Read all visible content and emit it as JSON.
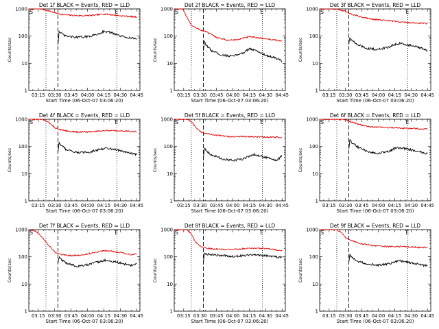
{
  "figure": {
    "background": "#ffffff",
    "event_color": "#000000",
    "lld_color": "#e00000"
  },
  "chart_data": [
    {
      "type": "line",
      "title": "Det 1f BLACK = Events, RED = LLD",
      "xlabel": "Start Time (06-Oct-07 03:06:20)",
      "ylabel": "Counts/sec",
      "y_scale": "log",
      "ylim": [
        1,
        1000
      ],
      "yticks": [
        "1",
        "10",
        "100",
        "1000"
      ],
      "xticks": [
        "03:15",
        "03:30",
        "03:45",
        "04:00",
        "04:15",
        "04:30",
        "04:45"
      ],
      "xlim": [
        "03:06:20",
        "04:48:00"
      ],
      "markers": {
        "S": "03:09:00",
        "E": "04:27:00"
      },
      "vlines_dotted": [
        "03:22:00",
        "04:27:00"
      ],
      "vline_dashed": "03:33:00",
      "series": [
        {
          "name": "LLD",
          "color": "#e00000",
          "x": [
            "03:06:20",
            "03:10:00",
            "03:14:00",
            "03:18:00",
            "03:22:00",
            "03:26:00",
            "03:30:00",
            "03:35:00",
            "03:45:00",
            "03:55:00",
            "04:05:00",
            "04:15:00",
            "04:20:00",
            "04:30:00",
            "04:40:00",
            "04:45:00"
          ],
          "y": [
            1000,
            1000,
            1000,
            1000,
            900,
            820,
            720,
            640,
            580,
            560,
            580,
            650,
            620,
            560,
            520,
            500
          ]
        },
        {
          "name": "Events",
          "color": "#000000",
          "x": [
            "03:33:00",
            "03:34:00",
            "03:35:00",
            "03:40:00",
            "03:50:00",
            "04:00:00",
            "04:10:00",
            "04:15:00",
            "04:20:00",
            "04:30:00",
            "04:40:00",
            "04:45:00"
          ],
          "y": [
            50,
            150,
            130,
            100,
            90,
            95,
            120,
            150,
            140,
            100,
            85,
            80
          ]
        }
      ]
    },
    {
      "type": "line",
      "title": "Det 2f BLACK = Events, RED = LLD",
      "xlabel": "Start Time (06-Oct-07 03:06:20)",
      "ylabel": "Counts/sec",
      "y_scale": "log",
      "ylim": [
        1,
        1000
      ],
      "yticks": [
        "1",
        "10",
        "100",
        "1000"
      ],
      "xticks": [
        "03:15",
        "03:30",
        "03:45",
        "04:00",
        "04:15",
        "04:30",
        "04:45"
      ],
      "xlim": [
        "03:06:20",
        "04:48:00"
      ],
      "markers": {
        "S": "03:09:00",
        "E": "04:27:00"
      },
      "vlines_dotted": [
        "03:22:00",
        "04:27:00"
      ],
      "vline_dashed": "03:33:00",
      "series": [
        {
          "name": "LLD",
          "color": "#e00000",
          "x": [
            "03:06:20",
            "03:10:00",
            "03:14:00",
            "03:18:00",
            "03:22:00",
            "03:26:00",
            "03:30:00",
            "03:35:00",
            "03:45:00",
            "03:55:00",
            "04:05:00",
            "04:15:00",
            "04:20:00",
            "04:30:00",
            "04:40:00",
            "04:45:00"
          ],
          "y": [
            1000,
            1000,
            1000,
            500,
            250,
            200,
            170,
            150,
            90,
            70,
            75,
            95,
            90,
            80,
            70,
            65
          ]
        },
        {
          "name": "Events",
          "color": "#000000",
          "x": [
            "03:33:00",
            "03:34:00",
            "03:35:00",
            "03:40:00",
            "03:50:00",
            "04:00:00",
            "04:10:00",
            "04:15:00",
            "04:20:00",
            "04:30:00",
            "04:40:00",
            "04:45:00"
          ],
          "y": [
            30,
            60,
            50,
            30,
            20,
            18,
            25,
            35,
            30,
            20,
            15,
            12
          ]
        }
      ]
    },
    {
      "type": "line",
      "title": "Det 3f BLACK = Events, RED = LLD",
      "xlabel": "Start Time (06-Oct-07 03:06:20)",
      "ylabel": "Counts/sec",
      "y_scale": "log",
      "ylim": [
        1,
        1000
      ],
      "yticks": [
        "1",
        "10",
        "100",
        "1000"
      ],
      "xticks": [
        "03:15",
        "03:30",
        "03:45",
        "04:00",
        "04:15",
        "04:30",
        "04:45"
      ],
      "xlim": [
        "03:06:20",
        "04:48:00"
      ],
      "markers": {
        "S": "03:09:00",
        "E": "04:27:00"
      },
      "vlines_dotted": [
        "03:22:00",
        "04:27:00"
      ],
      "vline_dashed": "03:33:00",
      "series": [
        {
          "name": "LLD",
          "color": "#e00000",
          "x": [
            "03:06:20",
            "03:10:00",
            "03:14:00",
            "03:18:00",
            "03:22:00",
            "03:26:00",
            "03:30:00",
            "03:35:00",
            "03:45:00",
            "03:55:00",
            "04:05:00",
            "04:15:00",
            "04:20:00",
            "04:30:00",
            "04:40:00",
            "04:45:00"
          ],
          "y": [
            1000,
            1000,
            1000,
            1000,
            1000,
            900,
            800,
            650,
            500,
            420,
            380,
            350,
            330,
            310,
            300,
            290
          ]
        },
        {
          "name": "Events",
          "color": "#000000",
          "x": [
            "03:33:00",
            "03:34:00",
            "03:35:00",
            "03:40:00",
            "03:50:00",
            "04:00:00",
            "04:10:00",
            "04:15:00",
            "04:20:00",
            "04:30:00",
            "04:40:00",
            "04:45:00"
          ],
          "y": [
            50,
            90,
            75,
            50,
            35,
            32,
            40,
            50,
            55,
            45,
            35,
            30
          ]
        }
      ]
    },
    {
      "type": "line",
      "title": "Det 4f BLACK = Events, RED = LLD",
      "xlabel": "Start Time (06-Oct-07 03:06:20)",
      "ylabel": "Counts/sec",
      "y_scale": "log",
      "ylim": [
        1,
        1000
      ],
      "yticks": [
        "1",
        "10",
        "100",
        "1000"
      ],
      "xticks": [
        "03:15",
        "03:30",
        "03:45",
        "04:00",
        "04:15",
        "04:30",
        "04:45"
      ],
      "xlim": [
        "03:06:20",
        "04:48:00"
      ],
      "markers": {
        "S": "03:09:00",
        "E": "04:27:00"
      },
      "vlines_dotted": [
        "03:22:00",
        "04:27:00"
      ],
      "vline_dashed": "03:33:00",
      "series": [
        {
          "name": "LLD",
          "color": "#e00000",
          "x": [
            "03:06:20",
            "03:10:00",
            "03:14:00",
            "03:18:00",
            "03:22:00",
            "03:26:00",
            "03:30:00",
            "03:35:00",
            "03:45:00",
            "03:55:00",
            "04:05:00",
            "04:15:00",
            "04:20:00",
            "04:30:00",
            "04:40:00",
            "04:45:00"
          ],
          "y": [
            1000,
            1000,
            1000,
            1000,
            900,
            700,
            500,
            420,
            350,
            340,
            350,
            380,
            380,
            370,
            360,
            350
          ]
        },
        {
          "name": "Events",
          "color": "#000000",
          "x": [
            "03:33:00",
            "03:34:00",
            "03:35:00",
            "03:40:00",
            "03:50:00",
            "04:00:00",
            "04:10:00",
            "04:15:00",
            "04:20:00",
            "04:30:00",
            "04:40:00",
            "04:45:00"
          ],
          "y": [
            60,
            140,
            120,
            80,
            60,
            60,
            75,
            85,
            85,
            70,
            55,
            50
          ]
        }
      ]
    },
    {
      "type": "line",
      "title": "Det 5f BLACK = Events, RED = LLD",
      "xlabel": "Start Time (06-Oct-07 03:06:20)",
      "ylabel": "Counts/sec",
      "y_scale": "log",
      "ylim": [
        1,
        1000
      ],
      "yticks": [
        "1",
        "10",
        "100",
        "1000"
      ],
      "xticks": [
        "03:15",
        "03:30",
        "03:45",
        "04:00",
        "04:15",
        "04:30",
        "04:45"
      ],
      "xlim": [
        "03:06:20",
        "04:48:00"
      ],
      "markers": {
        "S": "03:09:00",
        "E": "04:27:00"
      },
      "vlines_dotted": [
        "03:22:00",
        "04:27:00"
      ],
      "vline_dashed": "03:33:00",
      "series": [
        {
          "name": "LLD",
          "color": "#e00000",
          "x": [
            "03:06:20",
            "03:10:00",
            "03:14:00",
            "03:18:00",
            "03:22:00",
            "03:26:00",
            "03:30:00",
            "03:35:00",
            "03:45:00",
            "03:55:00",
            "04:05:00",
            "04:15:00",
            "04:20:00",
            "04:30:00",
            "04:40:00",
            "04:45:00"
          ],
          "y": [
            1000,
            1000,
            1000,
            1000,
            800,
            500,
            350,
            300,
            260,
            230,
            230,
            230,
            230,
            220,
            220,
            210
          ]
        },
        {
          "name": "Events",
          "color": "#000000",
          "x": [
            "03:33:00",
            "03:34:00",
            "03:35:00",
            "03:40:00",
            "03:50:00",
            "04:00:00",
            "04:10:00",
            "04:15:00",
            "04:20:00",
            "04:30:00",
            "04:40:00",
            "04:45:00"
          ],
          "y": [
            40,
            90,
            75,
            50,
            35,
            30,
            35,
            45,
            50,
            40,
            30,
            45
          ]
        }
      ]
    },
    {
      "type": "line",
      "title": "Det 6f BLACK = Events, RED = LLD",
      "xlabel": "Start Time (06-Oct-07 03:06:20)",
      "ylabel": "Counts/sec",
      "y_scale": "log",
      "ylim": [
        1,
        1000
      ],
      "yticks": [
        "1",
        "10",
        "100",
        "1000"
      ],
      "xticks": [
        "03:15",
        "03:30",
        "03:45",
        "04:00",
        "04:15",
        "04:30",
        "04:45"
      ],
      "xlim": [
        "03:06:20",
        "04:48:00"
      ],
      "markers": {
        "S": "03:09:00",
        "E": "04:27:00"
      },
      "vlines_dotted": [
        "03:22:00",
        "04:27:00"
      ],
      "vline_dashed": "03:33:00",
      "series": [
        {
          "name": "LLD",
          "color": "#e00000",
          "x": [
            "03:06:20",
            "03:10:00",
            "03:14:00",
            "03:18:00",
            "03:22:00",
            "03:26:00",
            "03:30:00",
            "03:35:00",
            "03:45:00",
            "03:55:00",
            "04:05:00",
            "04:15:00",
            "04:20:00",
            "04:30:00",
            "04:40:00",
            "04:45:00"
          ],
          "y": [
            1000,
            1000,
            1000,
            1000,
            1000,
            1000,
            950,
            800,
            600,
            520,
            500,
            490,
            480,
            460,
            440,
            430
          ]
        },
        {
          "name": "Events",
          "color": "#000000",
          "x": [
            "03:33:00",
            "03:34:00",
            "03:35:00",
            "03:40:00",
            "03:50:00",
            "04:00:00",
            "04:10:00",
            "04:15:00",
            "04:20:00",
            "04:30:00",
            "04:40:00",
            "04:45:00"
          ],
          "y": [
            80,
            180,
            150,
            100,
            65,
            55,
            65,
            85,
            90,
            75,
            60,
            55
          ]
        }
      ]
    },
    {
      "type": "line",
      "title": "Det 7f BLACK = Events, RED = LLD",
      "xlabel": "Start Time (06-Oct-07 03:06:20)",
      "ylabel": "Counts/sec",
      "y_scale": "log",
      "ylim": [
        1,
        1000
      ],
      "yticks": [
        "1",
        "10",
        "100",
        "1000"
      ],
      "xticks": [
        "03:15",
        "03:30",
        "03:45",
        "04:00",
        "04:15",
        "04:30",
        "04:45"
      ],
      "xlim": [
        "03:06:20",
        "04:48:00"
      ],
      "markers": {
        "S": "03:09:00",
        "E": "04:27:00"
      },
      "vlines_dotted": [
        "03:22:00",
        "04:27:00"
      ],
      "vline_dashed": "03:33:00",
      "series": [
        {
          "name": "LLD",
          "color": "#e00000",
          "x": [
            "03:06:20",
            "03:10:00",
            "03:14:00",
            "03:18:00",
            "03:22:00",
            "03:26:00",
            "03:30:00",
            "03:35:00",
            "03:45:00",
            "03:55:00",
            "04:05:00",
            "04:15:00",
            "04:20:00",
            "04:30:00",
            "04:40:00",
            "04:45:00"
          ],
          "y": [
            1000,
            1000,
            800,
            550,
            350,
            230,
            150,
            120,
            110,
            115,
            140,
            170,
            165,
            145,
            120,
            130
          ]
        },
        {
          "name": "Events",
          "color": "#000000",
          "x": [
            "03:33:00",
            "03:34:00",
            "03:35:00",
            "03:40:00",
            "03:50:00",
            "04:00:00",
            "04:10:00",
            "04:15:00",
            "04:20:00",
            "04:30:00",
            "04:40:00",
            "04:45:00"
          ],
          "y": [
            55,
            100,
            85,
            60,
            45,
            50,
            65,
            75,
            70,
            60,
            48,
            55
          ]
        }
      ]
    },
    {
      "type": "line",
      "title": "Det 8f BLACK = Events, RED = LLD",
      "xlabel": "Start Time (06-Oct-07 03:06:20)",
      "ylabel": "Counts/sec",
      "y_scale": "log",
      "ylim": [
        1,
        1000
      ],
      "yticks": [
        "1",
        "10",
        "100",
        "1000"
      ],
      "xticks": [
        "03:15",
        "03:30",
        "03:45",
        "04:00",
        "04:15",
        "04:30",
        "04:45"
      ],
      "xlim": [
        "03:06:20",
        "04:48:00"
      ],
      "markers": {
        "S": "03:09:00",
        "E": "04:27:00"
      },
      "vlines_dotted": [
        "03:22:00",
        "04:27:00"
      ],
      "vline_dashed": "03:33:00",
      "series": [
        {
          "name": "LLD",
          "color": "#e00000",
          "x": [
            "03:06:20",
            "03:10:00",
            "03:14:00",
            "03:18:00",
            "03:22:00",
            "03:26:00",
            "03:30:00",
            "03:35:00",
            "03:45:00",
            "03:55:00",
            "04:05:00",
            "04:15:00",
            "04:20:00",
            "04:30:00",
            "04:40:00",
            "04:45:00"
          ],
          "y": [
            1000,
            1000,
            1000,
            1000,
            700,
            350,
            250,
            210,
            190,
            185,
            190,
            210,
            210,
            200,
            180,
            170
          ]
        },
        {
          "name": "Events",
          "color": "#000000",
          "x": [
            "03:33:00",
            "03:34:00",
            "03:35:00",
            "03:40:00",
            "03:50:00",
            "04:00:00",
            "04:10:00",
            "04:15:00",
            "04:20:00",
            "04:30:00",
            "04:40:00",
            "04:45:00"
          ],
          "y": [
            60,
            140,
            130,
            120,
            110,
            105,
            110,
            120,
            120,
            110,
            100,
            95
          ]
        }
      ]
    },
    {
      "type": "line",
      "title": "Det 9f BLACK = Events, RED = LLD",
      "xlabel": "Start Time (06-Oct-07 03:06:20)",
      "ylabel": "Counts/sec",
      "y_scale": "log",
      "ylim": [
        1,
        1000
      ],
      "yticks": [
        "1",
        "10",
        "100",
        "1000"
      ],
      "xticks": [
        "03:15",
        "03:30",
        "03:45",
        "04:00",
        "04:15",
        "04:30",
        "04:45"
      ],
      "xlim": [
        "03:06:20",
        "04:48:00"
      ],
      "markers": {
        "S": "03:09:00",
        "E": "04:27:00"
      },
      "vlines_dotted": [
        "03:22:00",
        "04:27:00"
      ],
      "vline_dashed": "03:33:00",
      "series": [
        {
          "name": "LLD",
          "color": "#e00000",
          "x": [
            "03:06:20",
            "03:10:00",
            "03:14:00",
            "03:18:00",
            "03:22:00",
            "03:26:00",
            "03:30:00",
            "03:35:00",
            "03:45:00",
            "03:55:00",
            "04:05:00",
            "04:15:00",
            "04:20:00",
            "04:30:00",
            "04:40:00",
            "04:45:00"
          ],
          "y": [
            1000,
            1000,
            1000,
            1000,
            1000,
            800,
            500,
            400,
            300,
            260,
            240,
            240,
            240,
            230,
            220,
            220
          ]
        },
        {
          "name": "Events",
          "color": "#000000",
          "x": [
            "03:33:00",
            "03:34:00",
            "03:35:00",
            "03:40:00",
            "03:50:00",
            "04:00:00",
            "04:10:00",
            "04:15:00",
            "04:20:00",
            "04:30:00",
            "04:40:00",
            "04:45:00"
          ],
          "y": [
            60,
            120,
            100,
            70,
            55,
            50,
            55,
            65,
            70,
            60,
            50,
            45
          ]
        }
      ]
    }
  ]
}
